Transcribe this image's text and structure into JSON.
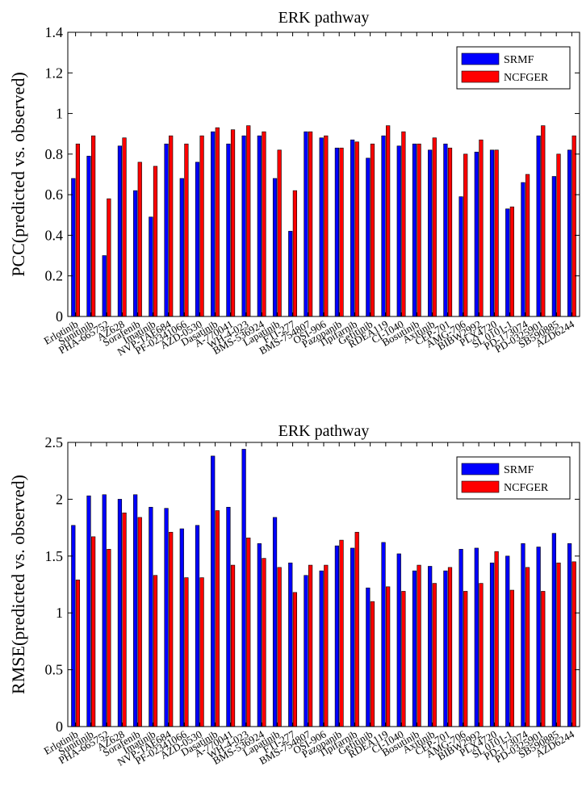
{
  "chart_data": [
    {
      "type": "bar",
      "title": "ERK pathway",
      "ylabel": "PCC(predicted vs. observed)",
      "xlabel": "",
      "ylim": [
        0,
        1.4
      ],
      "yticks": [
        "0",
        "0.2",
        "0.4",
        "0.6",
        "0.8",
        "1",
        "1.2",
        "1.4"
      ],
      "legend_position": "top-right",
      "grid": false,
      "categories": [
        "Erlotinib",
        "Sunitinib",
        "PHA-665752",
        "AZ628",
        "Sorafenib",
        "Imatinib",
        "NVP-TAE684",
        "PF-02341066",
        "AZD-0530",
        "Dasatinib",
        "A-770041",
        "WH-4-023",
        "BMS-536924",
        "Lapatinib",
        "FTI-277",
        "BMS-754807",
        "OSI-906",
        "Pazopanib",
        "Tipifarnib",
        "Gefitinib",
        "RDEA119",
        "CI-1040",
        "Bosutinib",
        "Axitinib",
        "CEP-701",
        "AMG-706",
        "BIBW2992",
        "PLX4720",
        "SL 0101-1",
        "PD-173074",
        "PD-0325901",
        "SB590885",
        "AZD6244"
      ],
      "series": [
        {
          "name": "SRMF",
          "color": "#0000ff",
          "values": [
            0.68,
            0.79,
            0.3,
            0.84,
            0.62,
            0.49,
            0.85,
            0.68,
            0.76,
            0.91,
            0.85,
            0.89,
            0.89,
            0.68,
            0.42,
            0.91,
            0.88,
            0.83,
            0.87,
            0.78,
            0.89,
            0.84,
            0.85,
            0.82,
            0.85,
            0.59,
            0.81,
            0.82,
            0.53,
            0.66,
            0.89,
            0.69,
            0.82
          ]
        },
        {
          "name": "NCFGER",
          "color": "#ff0000",
          "values": [
            0.85,
            0.89,
            0.58,
            0.88,
            0.76,
            0.74,
            0.89,
            0.85,
            0.89,
            0.93,
            0.92,
            0.94,
            0.91,
            0.82,
            0.62,
            0.91,
            0.89,
            0.83,
            0.86,
            0.85,
            0.94,
            0.91,
            0.85,
            0.88,
            0.83,
            0.8,
            0.87,
            0.82,
            0.54,
            0.7,
            0.94,
            0.8,
            0.89
          ]
        }
      ]
    },
    {
      "type": "bar",
      "title": "ERK pathway",
      "ylabel": "RMSE(predicted vs. observed)",
      "xlabel": "",
      "ylim": [
        0,
        2.5
      ],
      "yticks": [
        "0",
        "0.5",
        "1",
        "1.5",
        "2",
        "2.5"
      ],
      "legend_position": "top-right",
      "grid": false,
      "categories": [
        "Erlotinib",
        "Sunitinib",
        "PHA-665752",
        "AZ628",
        "Sorafenib",
        "Imatinib",
        "NVP-TAE684",
        "PF-02341066",
        "AZD-0530",
        "Dasatinib",
        "A-770041",
        "WH-4-023",
        "BMS-536924",
        "Lapatinib",
        "FTI-277",
        "BMS-754807",
        "OSI-906",
        "Pazopanib",
        "Tipifarnib",
        "Gefitinib",
        "RDEA119",
        "CI-1040",
        "Bosutinib",
        "Axitinib",
        "CEP-701",
        "AMG-706",
        "BIBW2992",
        "PLX4720",
        "SL 0101-1",
        "PD-173074",
        "PD-0325901",
        "SB590885",
        "AZD6244"
      ],
      "series": [
        {
          "name": "SRMF",
          "color": "#0000ff",
          "values": [
            1.77,
            2.03,
            2.04,
            2.0,
            2.04,
            1.93,
            1.92,
            1.74,
            1.77,
            2.38,
            1.93,
            2.44,
            1.61,
            1.84,
            1.44,
            1.33,
            1.37,
            1.59,
            1.57,
            1.22,
            1.62,
            1.52,
            1.37,
            1.41,
            1.37,
            1.56,
            1.57,
            1.44,
            1.5,
            1.61,
            1.58,
            1.7,
            1.61
          ]
        },
        {
          "name": "NCFGER",
          "color": "#ff0000",
          "values": [
            1.29,
            1.67,
            1.56,
            1.88,
            1.84,
            1.33,
            1.71,
            1.31,
            1.31,
            1.9,
            1.42,
            1.66,
            1.48,
            1.4,
            1.18,
            1.42,
            1.42,
            1.64,
            1.71,
            1.1,
            1.23,
            1.19,
            1.42,
            1.26,
            1.4,
            1.19,
            1.26,
            1.54,
            1.2,
            1.4,
            1.19,
            1.44,
            1.45
          ]
        }
      ]
    }
  ]
}
